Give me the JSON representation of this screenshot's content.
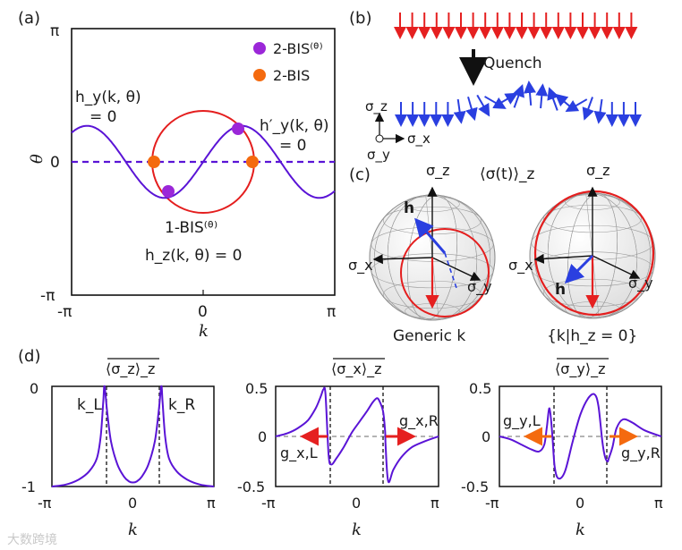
{
  "colors": {
    "purple": "#5a14d6",
    "red": "#e41e1e",
    "orange": "#f46a0f",
    "dot_purple": "#9b27d8",
    "blue": "#2a3fe0",
    "arrow_red": "#e52020",
    "black": "#111111"
  },
  "panel_a": {
    "label": "(a)",
    "x_ticks": [
      "-π",
      "0",
      "π"
    ],
    "y_ticks": [
      "π",
      "0",
      "-π"
    ],
    "xlabel": "k",
    "ylabel": "θ",
    "legend": [
      {
        "label": "2-BIS⁽ᶿ⁾",
        "color": "#9b27d8"
      },
      {
        "label": "2-BIS",
        "color": "#f46a0f"
      }
    ],
    "ann_hy_1": "h_y(k, θ)",
    "ann_hy_2": "= 0",
    "ann_hyp_1": "h′_y(k, θ)",
    "ann_hyp_2": "= 0",
    "ann_bis_1": "1-BIS⁽ᶿ⁾",
    "ann_bis_2": "h_z(k, θ) = 0",
    "chart_data": {
      "type": "line",
      "xlim": [
        -3.1416,
        3.1416
      ],
      "ylim": [
        -3.1416,
        3.1416
      ],
      "series": [
        {
          "name": "h_y = 0 curve",
          "function": "theta = 0.85*sin(1.7*k)"
        },
        {
          "name": "h_z = 0 circle",
          "center": [
            0,
            0
          ],
          "radius": 1.2
        },
        {
          "name": "theta = 0 dashed",
          "value": 0
        }
      ],
      "points": [
        {
          "name": "2-BIS",
          "k": -1.2,
          "theta": 0
        },
        {
          "name": "2-BIS",
          "k": 1.2,
          "theta": 0
        },
        {
          "name": "2-BIS(theta)",
          "k": -0.88,
          "theta": -0.82
        },
        {
          "name": "2-BIS(theta)",
          "k": 0.88,
          "theta": 0.82
        }
      ]
    }
  },
  "panel_b": {
    "label": "(b)",
    "quench": "Quench",
    "sz": "σ_z",
    "sx": "σ_x",
    "sy": "σ_y"
  },
  "panel_c": {
    "label": "(c)",
    "title": "⟨σ(t)⟩_z",
    "left": {
      "sz": "σ_z",
      "sx": "σ_x",
      "sy": "σ_y",
      "h": "h",
      "caption": "Generic k"
    },
    "right": {
      "sz": "σ_z",
      "sx": "σ_x",
      "sy": "σ_y",
      "h": "h",
      "caption": "{k|h_z = 0}"
    }
  },
  "panel_d": {
    "label": "(d)",
    "plots": [
      {
        "title": "⟨σ_z⟩_z",
        "y_ticks": [
          "0",
          "-1"
        ],
        "x_ticks": [
          "-π",
          "0",
          "π"
        ],
        "xlabel": "k",
        "ann1": "k_L",
        "ann2": "k_R",
        "chart_data": {
          "type": "line",
          "xlim": [
            -3.1416,
            3.1416
          ],
          "ylim": [
            -1,
            0
          ],
          "dashed_vertical": [
            -1.1,
            1.1
          ],
          "series": [
            {
              "name": "avg sigma_z",
              "x": [
                -3.14,
                -2.6,
                -2.1,
                -1.7,
                -1.4,
                -1.25,
                -1.15,
                -1.1,
                -1.0,
                -0.85,
                -0.6,
                -0.35,
                -0.15,
                0,
                0.15,
                0.35,
                0.6,
                0.85,
                1.0,
                1.1,
                1.15,
                1.25,
                1.4,
                1.7,
                2.1,
                2.6,
                3.14
              ],
              "y": [
                -1.0,
                -0.98,
                -0.93,
                -0.85,
                -0.72,
                -0.5,
                -0.15,
                0.0,
                -0.25,
                -0.55,
                -0.78,
                -0.9,
                -0.95,
                -0.96,
                -0.95,
                -0.9,
                -0.78,
                -0.55,
                -0.25,
                0.0,
                -0.15,
                -0.5,
                -0.72,
                -0.85,
                -0.93,
                -0.98,
                -1.0
              ]
            }
          ]
        }
      },
      {
        "title": "⟨σ_x⟩_z",
        "y_ticks": [
          "0.5",
          "0",
          "-0.5"
        ],
        "x_ticks": [
          "-π",
          "0",
          "π"
        ],
        "xlabel": "k",
        "ann1": "g_x,L",
        "ann2": "g_x,R",
        "chart_data": {
          "type": "line",
          "xlim": [
            -3.1416,
            3.1416
          ],
          "ylim": [
            -0.5,
            0.5
          ],
          "dashed_vertical": [
            -1.1,
            1.1
          ],
          "series": [
            {
              "name": "avg sigma_x",
              "x": [
                -3.14,
                -2.7,
                -2.3,
                -1.9,
                -1.6,
                -1.4,
                -1.3,
                -1.22,
                -1.1,
                -1.0,
                -0.8,
                -0.5,
                -0.2,
                0.1,
                0.4,
                0.6,
                0.75,
                0.85,
                1.0,
                1.08,
                1.1,
                1.2,
                1.4,
                1.7,
                2.1,
                2.6,
                3.14
              ],
              "y": [
                0.0,
                0.03,
                0.08,
                0.16,
                0.28,
                0.4,
                0.47,
                0.42,
                -0.18,
                -0.28,
                -0.22,
                -0.1,
                0.04,
                0.15,
                0.26,
                0.34,
                0.38,
                0.36,
                0.25,
                0.05,
                -0.1,
                -0.45,
                -0.33,
                -0.21,
                -0.11,
                -0.05,
                0.0
              ]
            }
          ]
        }
      },
      {
        "title": "⟨σ_y⟩_z",
        "y_ticks": [
          "0.5",
          "0",
          "-0.5"
        ],
        "x_ticks": [
          "-π",
          "0",
          "π"
        ],
        "xlabel": "k",
        "ann1": "g_y,L",
        "ann2": "g_y,R",
        "chart_data": {
          "type": "line",
          "xlim": [
            -3.1416,
            3.1416
          ],
          "ylim": [
            -0.5,
            0.5
          ],
          "dashed_vertical": [
            -1.1,
            1.1
          ],
          "series": [
            {
              "name": "avg sigma_y",
              "x": [
                -3.14,
                -2.7,
                -2.3,
                -1.9,
                -1.6,
                -1.4,
                -1.3,
                -1.2,
                -1.1,
                -1.0,
                -0.85,
                -0.6,
                -0.3,
                0.0,
                0.3,
                0.55,
                0.7,
                0.85,
                0.95,
                1.05,
                1.1,
                1.25,
                1.4,
                1.65,
                2.0,
                2.5,
                3.14
              ],
              "y": [
                0.0,
                -0.03,
                -0.08,
                -0.13,
                -0.15,
                -0.08,
                0.1,
                0.28,
                0.05,
                -0.3,
                -0.42,
                -0.35,
                -0.05,
                0.22,
                0.38,
                0.42,
                0.3,
                -0.05,
                -0.2,
                -0.25,
                -0.22,
                -0.1,
                0.08,
                0.17,
                0.14,
                0.06,
                0.0
              ]
            }
          ]
        }
      }
    ]
  },
  "watermark": "大数跨境"
}
